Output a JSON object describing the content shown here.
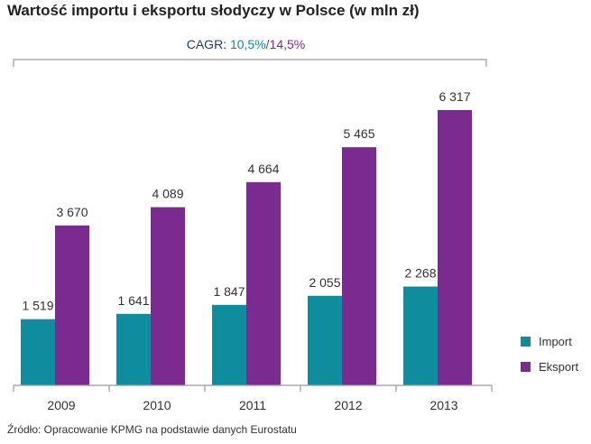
{
  "title": "Wartość importu i eksportu słodyczy w Polsce (w mln zł)",
  "cagr": {
    "label": "CAGR:",
    "import": "10,5%",
    "separator": "/",
    "export": "14,5%"
  },
  "source": "Źródło: Opracowanie KPMG na podstawie danych Eurostatu",
  "colors": {
    "import": "#0f8c9e",
    "export": "#7b2b8f",
    "axis": "#9a9a9a",
    "text": "#333333"
  },
  "chart_data": {
    "type": "bar",
    "title": "Wartość importu i eksportu słodyczy w Polsce (w mln zł)",
    "xlabel": "",
    "ylabel": "",
    "ylim": [
      0,
      7000
    ],
    "grid": false,
    "legend_position": "right",
    "categories": [
      "2009",
      "2010",
      "2011",
      "2012",
      "2013"
    ],
    "series": [
      {
        "name": "Import",
        "values": [
          1519,
          1641,
          1847,
          2055,
          2268
        ],
        "labels": [
          "1 519",
          "1 641",
          "1 847",
          "2 055",
          "2 268"
        ]
      },
      {
        "name": "Eksport",
        "values": [
          3670,
          4089,
          4664,
          5465,
          6317
        ],
        "labels": [
          "3 670",
          "4 089",
          "4 664",
          "5 465",
          "6 317"
        ]
      }
    ]
  }
}
